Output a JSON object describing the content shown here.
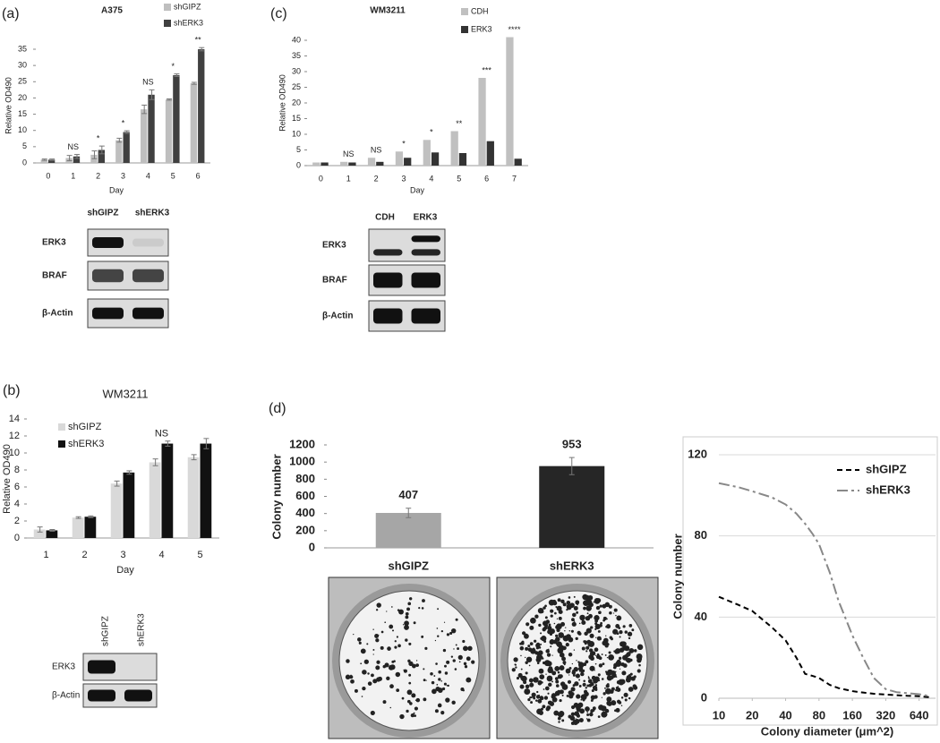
{
  "chart_data": [
    {
      "type": "bar",
      "panel": "(a)",
      "title": "A375",
      "y_label": "Relative OD490",
      "x_label": "Day",
      "categories": [
        "0",
        "1",
        "2",
        "3",
        "4",
        "5",
        "6"
      ],
      "series": [
        {
          "name": "shGIPZ",
          "color": "#bfbfbf",
          "values": [
            1,
            1.5,
            2.5,
            7,
            16.5,
            19.5,
            24.5
          ],
          "errors": [
            0.2,
            0.8,
            1.2,
            0.6,
            1.3,
            0.2,
            0.3
          ]
        },
        {
          "name": "shERK3",
          "color": "#404040",
          "values": [
            1,
            2,
            4,
            9.5,
            21,
            27,
            35
          ],
          "errors": [
            0.2,
            0.6,
            1.2,
            0.4,
            1.5,
            0.4,
            0.5
          ]
        }
      ],
      "annotations": [
        null,
        "NS",
        "*",
        "*",
        "NS",
        "*",
        "**"
      ],
      "ylim": [
        0,
        35
      ],
      "yticks": [
        0,
        5,
        10,
        15,
        20,
        25,
        30,
        35
      ],
      "grid": false,
      "blot": {
        "lanes": [
          "shGIPZ",
          "shERK3"
        ],
        "rows": [
          "ERK3",
          "BRAF",
          "β-Actin"
        ]
      }
    },
    {
      "type": "bar",
      "panel": "(c)",
      "title": "WM3211",
      "y_label": "Relative OD490",
      "x_label": "Day",
      "categories": [
        "0",
        "1",
        "2",
        "3",
        "4",
        "5",
        "6",
        "7"
      ],
      "series": [
        {
          "name": "CDH",
          "color": "#c0c0c0",
          "values": [
            1,
            1.2,
            2.5,
            4.5,
            8.2,
            11,
            28,
            41
          ]
        },
        {
          "name": "ERK3",
          "color": "#333333",
          "values": [
            1,
            1,
            1.2,
            2.5,
            4.2,
            4,
            7.8,
            2.2
          ]
        }
      ],
      "annotations": [
        null,
        "NS",
        "NS",
        "*",
        "*",
        "**",
        "***",
        "****"
      ],
      "ylim": [
        0,
        40
      ],
      "yticks": [
        0,
        5,
        10,
        15,
        20,
        25,
        30,
        35,
        40
      ],
      "grid": false,
      "blot": {
        "lanes": [
          "CDH",
          "ERK3"
        ],
        "rows": [
          "ERK3",
          "BRAF",
          "β-Actin"
        ]
      }
    },
    {
      "type": "bar",
      "panel": "(b)",
      "title": "WM3211",
      "y_label": "Relative OD490",
      "x_label": "Day",
      "categories": [
        "1",
        "2",
        "3",
        "4",
        "5"
      ],
      "series": [
        {
          "name": "shGIPZ",
          "color": "#d9d9d9",
          "values": [
            1,
            2.4,
            6.4,
            8.9,
            9.5
          ],
          "errors": [
            0.3,
            0.1,
            0.3,
            0.4,
            0.3
          ]
        },
        {
          "name": "shERK3",
          "color": "#111111",
          "values": [
            0.9,
            2.5,
            7.7,
            11.1,
            11.1
          ],
          "errors": [
            0.1,
            0.1,
            0.2,
            0.3,
            0.6
          ]
        }
      ],
      "annotations": [
        null,
        null,
        null,
        "NS",
        null
      ],
      "ylim": [
        0,
        14
      ],
      "yticks": [
        0,
        2,
        4,
        6,
        8,
        10,
        12,
        14
      ],
      "grid": false,
      "blot": {
        "lanes": [
          "shGIPZ",
          "shERK3"
        ],
        "rows": [
          "ERK3",
          "β-Actin"
        ],
        "rotated_lanes": true
      }
    },
    {
      "type": "bar",
      "panel": "(d)",
      "y_label": "Colony number",
      "categories": [
        "shGIPZ",
        "shERK3"
      ],
      "values": [
        407,
        953
      ],
      "errors": [
        55,
        100
      ],
      "colors": [
        "#a6a6a6",
        "#262626"
      ],
      "data_labels": true,
      "ylim": [
        0,
        1200
      ],
      "yticks": [
        0,
        200,
        400,
        600,
        800,
        1000,
        1200
      ],
      "grid": false
    },
    {
      "type": "line",
      "y_label": "Colony number",
      "x_label": "Colony diameter (μm^2)",
      "x": [
        10,
        15,
        20,
        30,
        40,
        50,
        60,
        70,
        80,
        100,
        120,
        160,
        200,
        250,
        320,
        400,
        500,
        640,
        800
      ],
      "series": [
        {
          "name": "shGIPZ",
          "color": "#000000",
          "dash": "dashed",
          "values": [
            50,
            46,
            43,
            35,
            28.5,
            20,
            12,
            11,
            10,
            6.6,
            5,
            3.5,
            2.8,
            2.2,
            1.8,
            1.5,
            1.2,
            1,
            0.5
          ]
        },
        {
          "name": "shERK3",
          "color": "#888888",
          "dash": "dash-dot",
          "values": [
            106,
            104,
            102,
            99,
            95.5,
            91,
            86,
            81,
            76,
            62,
            48,
            31,
            20,
            10,
            4.5,
            3,
            2.5,
            2,
            1
          ]
        }
      ],
      "xscale": "log",
      "xlim": [
        10,
        900
      ],
      "xticks": [
        10,
        20,
        40,
        80,
        160,
        320,
        640
      ],
      "ylim": [
        0,
        120
      ],
      "yticks": [
        0,
        40,
        80,
        120
      ],
      "grid": true,
      "legend": "top-right"
    }
  ]
}
